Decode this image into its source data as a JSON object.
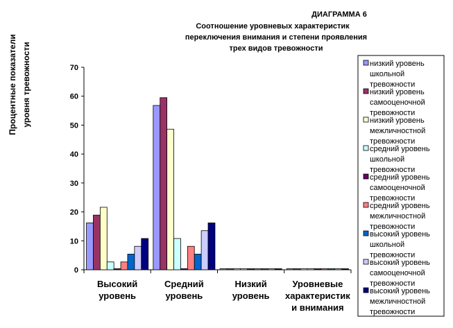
{
  "chart_data": {
    "type": "bar",
    "label": "ДИАГРАММА 6",
    "title_lines": [
      "Соотношение уровневых характеристик",
      "переключения внимания и степени проявления",
      "трех видов тревожности"
    ],
    "ylabel_lines": [
      "Процентные показатели",
      "уровня тревожности"
    ],
    "xlabel": "",
    "ylim": [
      0,
      70
    ],
    "yticks": [
      "0",
      "10",
      "20",
      "30",
      "40",
      "50",
      "60",
      "70"
    ],
    "grid": false,
    "legend_position": "right",
    "categories": [
      [
        "Высокий",
        "уровень"
      ],
      [
        "Средний",
        "уровень"
      ],
      [
        "Низкий",
        "уровень"
      ],
      [
        "Уровневые",
        "характеристик",
        "и внимания"
      ]
    ],
    "series": [
      {
        "name_lines": [
          "низкий уровень",
          "школьной",
          "тревожности"
        ],
        "color": "#9999ff",
        "values": [
          16.2,
          56.8,
          0,
          0
        ]
      },
      {
        "name_lines": [
          "низкий уровень",
          "самооценочной",
          "тревожности"
        ],
        "color": "#993366",
        "values": [
          18.9,
          59.5,
          0,
          0
        ]
      },
      {
        "name_lines": [
          "низкий уровень",
          "межличностной",
          "тревожности"
        ],
        "color": "#ffffcc",
        "values": [
          21.6,
          48.6,
          0,
          0
        ]
      },
      {
        "name_lines": [
          "средний уровень",
          "школьной",
          "тревожности"
        ],
        "color": "#ccffff",
        "values": [
          2.7,
          10.8,
          0,
          0
        ]
      },
      {
        "name_lines": [
          "средний уровень",
          "самооценочной",
          "тревожности"
        ],
        "color": "#660066",
        "values": [
          0,
          0,
          0,
          0
        ]
      },
      {
        "name_lines": [
          "средний уровень",
          "межличностной",
          "тревожности"
        ],
        "color": "#ff8080",
        "values": [
          2.7,
          8.1,
          0,
          0
        ]
      },
      {
        "name_lines": [
          "высокий уровень",
          "школьной",
          "тревожности"
        ],
        "color": "#0066cc",
        "values": [
          5.4,
          5.4,
          0,
          0
        ]
      },
      {
        "name_lines": [
          "высокий уровень",
          "самооценочной",
          "тревожности"
        ],
        "color": "#ccccff",
        "values": [
          8.1,
          13.5,
          0,
          0
        ]
      },
      {
        "name_lines": [
          "высокий уровень",
          "межличностной",
          "тревожности"
        ],
        "color": "#000080",
        "values": [
          10.8,
          16.2,
          0,
          0
        ]
      }
    ]
  }
}
